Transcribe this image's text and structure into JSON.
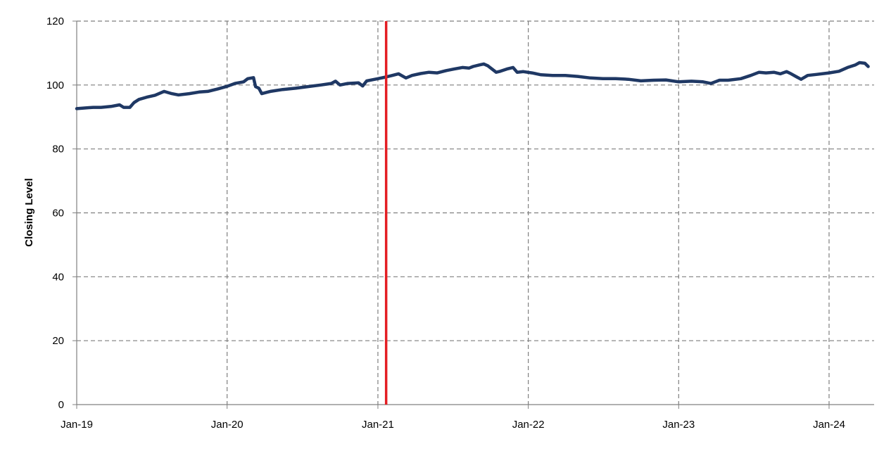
{
  "chart_data": {
    "type": "line",
    "title": "",
    "xlabel": "",
    "ylabel": "Closing Level",
    "ylim": [
      0,
      120
    ],
    "xlim": [
      "2019-01-01",
      "2024-04-05"
    ],
    "yticks": [
      "0",
      "20",
      "40",
      "60",
      "80",
      "100",
      "120"
    ],
    "xticks": [
      {
        "date": "2019-01-01",
        "label": "Jan-19"
      },
      {
        "date": "2020-01-01",
        "label": "Jan-20"
      },
      {
        "date": "2021-01-01",
        "label": "Jan-21"
      },
      {
        "date": "2022-01-01",
        "label": "Jan-22"
      },
      {
        "date": "2023-01-01",
        "label": "Jan-23"
      },
      {
        "date": "2024-01-01",
        "label": "Jan-24"
      }
    ],
    "grid": true,
    "legend": "none",
    "series": [
      {
        "color": "#1f3864",
        "points": [
          [
            "2019-01-01",
            92.6
          ],
          [
            "2019-01-20",
            92.8
          ],
          [
            "2019-02-10",
            93.0
          ],
          [
            "2019-03-01",
            93.0
          ],
          [
            "2019-03-25",
            93.3
          ],
          [
            "2019-04-15",
            93.8
          ],
          [
            "2019-04-25",
            93.0
          ],
          [
            "2019-05-10",
            93.0
          ],
          [
            "2019-05-20",
            94.5
          ],
          [
            "2019-06-01",
            95.5
          ],
          [
            "2019-06-20",
            96.2
          ],
          [
            "2019-07-10",
            96.8
          ],
          [
            "2019-08-01",
            98.0
          ],
          [
            "2019-08-20",
            97.3
          ],
          [
            "2019-09-05",
            96.9
          ],
          [
            "2019-10-01",
            97.3
          ],
          [
            "2019-10-25",
            97.8
          ],
          [
            "2019-11-15",
            98.0
          ],
          [
            "2019-12-10",
            98.8
          ],
          [
            "2020-01-01",
            99.6
          ],
          [
            "2020-01-20",
            100.5
          ],
          [
            "2020-02-10",
            101.0
          ],
          [
            "2020-02-20",
            102.0
          ],
          [
            "2020-03-05",
            102.3
          ],
          [
            "2020-03-10",
            99.5
          ],
          [
            "2020-03-18",
            99.0
          ],
          [
            "2020-03-25",
            97.3
          ],
          [
            "2020-04-15",
            98.0
          ],
          [
            "2020-05-15",
            98.6
          ],
          [
            "2020-06-15",
            99.0
          ],
          [
            "2020-07-15",
            99.5
          ],
          [
            "2020-08-15",
            100.0
          ],
          [
            "2020-09-10",
            100.5
          ],
          [
            "2020-09-20",
            101.2
          ],
          [
            "2020-10-01",
            100.0
          ],
          [
            "2020-10-20",
            100.5
          ],
          [
            "2020-11-15",
            100.7
          ],
          [
            "2020-11-25",
            99.7
          ],
          [
            "2020-12-05",
            101.3
          ],
          [
            "2021-01-01",
            102.0
          ],
          [
            "2021-01-20",
            102.5
          ],
          [
            "2021-02-05",
            103.0
          ],
          [
            "2021-02-20",
            103.5
          ],
          [
            "2021-03-10",
            102.2
          ],
          [
            "2021-03-25",
            103.0
          ],
          [
            "2021-04-15",
            103.6
          ],
          [
            "2021-05-05",
            104.0
          ],
          [
            "2021-05-25",
            103.8
          ],
          [
            "2021-06-15",
            104.5
          ],
          [
            "2021-07-05",
            105.0
          ],
          [
            "2021-07-25",
            105.5
          ],
          [
            "2021-08-10",
            105.3
          ],
          [
            "2021-08-20",
            105.8
          ],
          [
            "2021-09-05",
            106.3
          ],
          [
            "2021-09-15",
            106.6
          ],
          [
            "2021-09-25",
            106.0
          ],
          [
            "2021-10-15",
            104.0
          ],
          [
            "2021-10-25",
            104.3
          ],
          [
            "2021-11-10",
            105.0
          ],
          [
            "2021-11-25",
            105.5
          ],
          [
            "2021-12-05",
            104.0
          ],
          [
            "2021-12-20",
            104.2
          ],
          [
            "2022-01-10",
            103.8
          ],
          [
            "2022-02-01",
            103.2
          ],
          [
            "2022-03-01",
            103.0
          ],
          [
            "2022-04-01",
            103.0
          ],
          [
            "2022-05-01",
            102.7
          ],
          [
            "2022-06-01",
            102.2
          ],
          [
            "2022-07-01",
            102.0
          ],
          [
            "2022-08-01",
            102.0
          ],
          [
            "2022-09-01",
            101.8
          ],
          [
            "2022-10-01",
            101.3
          ],
          [
            "2022-11-01",
            101.5
          ],
          [
            "2022-12-01",
            101.6
          ],
          [
            "2023-01-01",
            101.0
          ],
          [
            "2023-02-01",
            101.2
          ],
          [
            "2023-03-01",
            101.0
          ],
          [
            "2023-03-20",
            100.5
          ],
          [
            "2023-04-10",
            101.5
          ],
          [
            "2023-05-01",
            101.5
          ],
          [
            "2023-06-01",
            102.0
          ],
          [
            "2023-06-25",
            103.0
          ],
          [
            "2023-07-15",
            104.0
          ],
          [
            "2023-08-01",
            103.8
          ],
          [
            "2023-08-20",
            104.0
          ],
          [
            "2023-09-05",
            103.5
          ],
          [
            "2023-09-20",
            104.2
          ],
          [
            "2023-10-01",
            103.5
          ],
          [
            "2023-10-15",
            102.5
          ],
          [
            "2023-10-25",
            101.8
          ],
          [
            "2023-11-10",
            103.0
          ],
          [
            "2023-12-01",
            103.3
          ],
          [
            "2024-01-01",
            103.8
          ],
          [
            "2024-01-25",
            104.3
          ],
          [
            "2024-02-15",
            105.5
          ],
          [
            "2024-03-05",
            106.3
          ],
          [
            "2024-03-15",
            107.0
          ],
          [
            "2024-03-28",
            106.8
          ],
          [
            "2024-04-05",
            105.8
          ]
        ]
      }
    ],
    "vline": {
      "date": "2021-01-21",
      "color": "#e31e24"
    }
  }
}
